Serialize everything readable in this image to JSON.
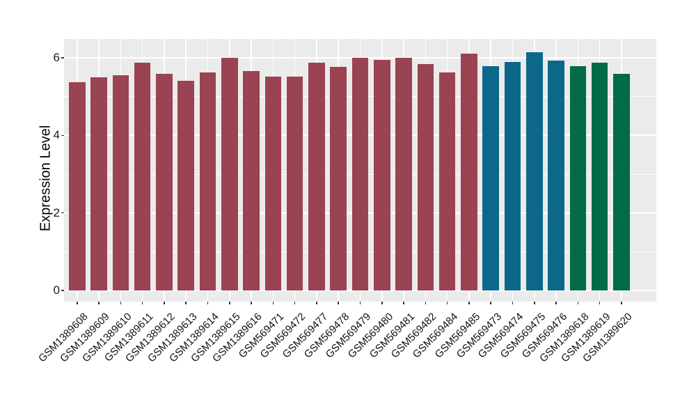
{
  "chart_data": {
    "type": "bar",
    "title": "",
    "xlabel": "",
    "ylabel": "Expression Level",
    "ylim": [
      0,
      6.48
    ],
    "yticks_major": [
      0,
      2,
      4,
      6
    ],
    "yticks_minor": [
      1,
      3,
      5
    ],
    "legend": "none",
    "panel_background": "#EBEBEB",
    "grid_color": "#FFFFFF",
    "categories": [
      "GSM1389608",
      "GSM1389609",
      "GSM1389610",
      "GSM1389611",
      "GSM1389612",
      "GSM1389613",
      "GSM1389614",
      "GSM1389615",
      "GSM1389616",
      "GSM569471",
      "GSM569472",
      "GSM569477",
      "GSM569478",
      "GSM569479",
      "GSM569480",
      "GSM569481",
      "GSM569482",
      "GSM569484",
      "GSM569485",
      "GSM569473",
      "GSM569474",
      "GSM569475",
      "GSM569476",
      "GSM1389618",
      "GSM1389619",
      "GSM1389620"
    ],
    "values": [
      5.37,
      5.49,
      5.55,
      5.87,
      5.58,
      5.4,
      5.63,
      6.0,
      5.66,
      5.52,
      5.52,
      5.87,
      5.77,
      6.0,
      5.94,
      6.0,
      5.84,
      5.62,
      6.1,
      5.78,
      5.9,
      6.15,
      5.93,
      5.78,
      5.87,
      5.58
    ],
    "groups": [
      "group1",
      "group1",
      "group1",
      "group1",
      "group1",
      "group1",
      "group1",
      "group1",
      "group1",
      "group1",
      "group1",
      "group1",
      "group1",
      "group1",
      "group1",
      "group1",
      "group1",
      "group1",
      "group1",
      "group2",
      "group2",
      "group2",
      "group2",
      "group3",
      "group3",
      "group3"
    ],
    "group_colors": {
      "group1": "#9A4352",
      "group2": "#0C688A",
      "group3": "#016A47"
    }
  }
}
